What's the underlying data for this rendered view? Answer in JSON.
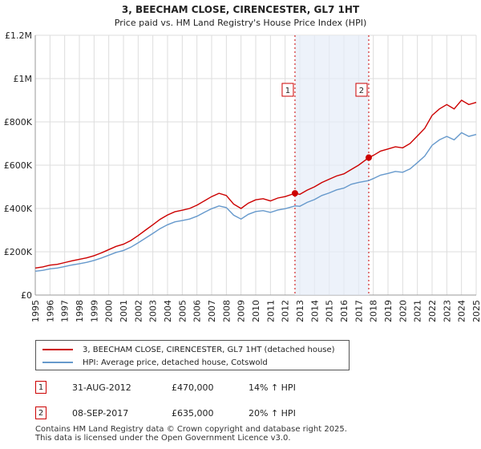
{
  "chart_data": {
    "type": "line",
    "title": "3, BEECHAM CLOSE, CIRENCESTER, GL7 1HT",
    "subtitle": "Price paid vs. HM Land Registry's House Price Index (HPI)",
    "xlim": [
      1995,
      2025
    ],
    "ylim": [
      0,
      1200000
    ],
    "yticks": [
      0,
      200000,
      400000,
      600000,
      800000,
      1000000,
      1200000
    ],
    "ytick_labels": [
      "£0",
      "£200K",
      "£400K",
      "£600K",
      "£800K",
      "£1M",
      "£1.2M"
    ],
    "xticks": [
      "1995",
      "1996",
      "1997",
      "1998",
      "1999",
      "2000",
      "2001",
      "2002",
      "2003",
      "2004",
      "2005",
      "2006",
      "2007",
      "2008",
      "2009",
      "2010",
      "2011",
      "2012",
      "2013",
      "2014",
      "2015",
      "2016",
      "2017",
      "2018",
      "2019",
      "2020",
      "2021",
      "2022",
      "2023",
      "2024",
      "2025"
    ],
    "highlight_band": [
      2012.67,
      2017.69
    ],
    "series": [
      {
        "name": "3, BEECHAM CLOSE, CIRENCESTER, GL7 1HT (detached house)",
        "color": "#cc0000",
        "x": [
          1995.0,
          1995.5,
          1996.0,
          1996.5,
          1997.0,
          1997.5,
          1998.0,
          1998.5,
          1999.0,
          1999.5,
          2000.0,
          2000.5,
          2001.0,
          2001.5,
          2002.0,
          2002.5,
          2003.0,
          2003.5,
          2004.0,
          2004.5,
          2005.0,
          2005.5,
          2006.0,
          2006.5,
          2007.0,
          2007.5,
          2008.0,
          2008.5,
          2009.0,
          2009.5,
          2010.0,
          2010.5,
          2011.0,
          2011.5,
          2012.0,
          2012.67,
          2013.0,
          2013.5,
          2014.0,
          2014.5,
          2015.0,
          2015.5,
          2016.0,
          2016.5,
          2017.0,
          2017.69,
          2018.0,
          2018.5,
          2019.0,
          2019.5,
          2020.0,
          2020.5,
          2021.0,
          2021.5,
          2022.0,
          2022.5,
          2023.0,
          2023.5,
          2024.0,
          2024.5,
          2025.0
        ],
        "values": [
          125000,
          130000,
          138000,
          142000,
          150000,
          158000,
          165000,
          172000,
          182000,
          195000,
          210000,
          225000,
          235000,
          252000,
          275000,
          300000,
          325000,
          350000,
          370000,
          385000,
          392000,
          400000,
          415000,
          435000,
          455000,
          470000,
          460000,
          420000,
          400000,
          425000,
          440000,
          445000,
          435000,
          448000,
          455000,
          470000,
          465000,
          485000,
          500000,
          520000,
          535000,
          550000,
          560000,
          580000,
          600000,
          635000,
          645000,
          665000,
          675000,
          685000,
          680000,
          700000,
          735000,
          770000,
          830000,
          860000,
          880000,
          860000,
          900000,
          880000,
          890000
        ]
      },
      {
        "name": "HPI: Average price, detached house, Cotswold",
        "color": "#6699cc",
        "x": [
          1995.0,
          1995.5,
          1996.0,
          1996.5,
          1997.0,
          1997.5,
          1998.0,
          1998.5,
          1999.0,
          1999.5,
          2000.0,
          2000.5,
          2001.0,
          2001.5,
          2002.0,
          2002.5,
          2003.0,
          2003.5,
          2004.0,
          2004.5,
          2005.0,
          2005.5,
          2006.0,
          2006.5,
          2007.0,
          2007.5,
          2008.0,
          2008.5,
          2009.0,
          2009.5,
          2010.0,
          2010.5,
          2011.0,
          2011.5,
          2012.0,
          2012.67,
          2013.0,
          2013.5,
          2014.0,
          2014.5,
          2015.0,
          2015.5,
          2016.0,
          2016.5,
          2017.0,
          2017.69,
          2018.0,
          2018.5,
          2019.0,
          2019.5,
          2020.0,
          2020.5,
          2021.0,
          2021.5,
          2022.0,
          2022.5,
          2023.0,
          2023.5,
          2024.0,
          2024.5,
          2025.0
        ],
        "values": [
          110000,
          114000,
          121000,
          125000,
          132000,
          139000,
          145000,
          151000,
          160000,
          171000,
          184000,
          197000,
          206000,
          221000,
          241000,
          263000,
          285000,
          307000,
          325000,
          338000,
          344000,
          351000,
          364000,
          382000,
          399000,
          412000,
          404000,
          369000,
          351000,
          373000,
          386000,
          390000,
          382000,
          393000,
          399000,
          412000,
          410000,
          428000,
          441000,
          460000,
          472000,
          486000,
          494000,
          512000,
          520000,
          529000,
          538000,
          554000,
          562000,
          571000,
          567000,
          583000,
          612000,
          642000,
          692000,
          717000,
          733000,
          717000,
          750000,
          733000,
          742000
        ]
      }
    ],
    "sales": [
      {
        "label": "1",
        "x": 2012.67,
        "value": 470000
      },
      {
        "label": "2",
        "x": 2017.69,
        "value": 635000
      }
    ]
  },
  "legend": {
    "property_label": "3, BEECHAM CLOSE, CIRENCESTER, GL7 1HT (detached house)",
    "hpi_label": "HPI: Average price, detached house, Cotswold"
  },
  "sales_table": [
    {
      "num": "1",
      "date": "31-AUG-2012",
      "price": "£470,000",
      "hpi": "14% ↑ HPI"
    },
    {
      "num": "2",
      "date": "08-SEP-2017",
      "price": "£635,000",
      "hpi": "20% ↑ HPI"
    }
  ],
  "footer": {
    "line1": "Contains HM Land Registry data © Crown copyright and database right 2025.",
    "line2": "This data is licensed under the Open Government Licence v3.0."
  }
}
